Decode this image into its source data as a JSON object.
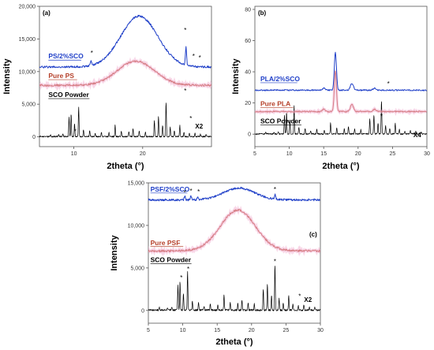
{
  "chart_data": [
    {
      "id": "a",
      "type": "line",
      "tag": "(a)",
      "xlabel": "2theta (°)",
      "ylabel": "Intensity",
      "xlim": [
        5,
        30
      ],
      "ylim": [
        -1500,
        20000
      ],
      "xticks": [
        10,
        20
      ],
      "xtick_labels": [
        "10",
        "20"
      ],
      "yticks": [
        0,
        5000,
        10000,
        15000,
        20000
      ],
      "ytick_labels": [
        "0",
        "5,000",
        "10,000",
        "15,000",
        "20,000"
      ],
      "multiplier": {
        "text": "X2",
        "x": 28.2,
        "y": 1300
      },
      "series": [
        {
          "key": "sco",
          "name": "SCO Powder",
          "color": "#000000",
          "base": 0,
          "shape": "sco",
          "scale": 1.0
        },
        {
          "key": "pure",
          "name": "Pure PS",
          "color": "#b5402a",
          "base": 7900,
          "shape": "amorphous",
          "peak": 19.0,
          "amp": 3700,
          "width": 3.8,
          "noise": 150
        },
        {
          "key": "comp",
          "name": "PS/2%SCO",
          "color": "#1f3fc8",
          "base": 10700,
          "shape": "amorphous",
          "peak": 19.5,
          "amp": 7800,
          "width": 3.8,
          "noise": 150,
          "spikes": [
            [
              26.3,
              2700
            ],
            [
              12.5,
              600
            ]
          ]
        }
      ],
      "labels": [
        {
          "series": "comp",
          "text": "PS/2%SCO",
          "x": 6.3,
          "y": 12000
        },
        {
          "series": "pure",
          "text": "Pure PS",
          "x": 6.3,
          "y": 9000
        },
        {
          "series": "sco",
          "text": "SCO Powder",
          "x": 6.3,
          "y": 6100
        }
      ],
      "stars": [
        [
          26.2,
          16000
        ],
        [
          12.6,
          12500
        ],
        [
          27.4,
          12000
        ],
        [
          28.3,
          11800
        ],
        [
          10.2,
          500
        ],
        [
          26.2,
          6700
        ],
        [
          27.0,
          2500
        ]
      ]
    },
    {
      "id": "b",
      "type": "line",
      "tag": "(b)",
      "xlabel": "2theta (°)",
      "ylabel": "Intensity",
      "xlim": [
        5,
        30
      ],
      "ylim": [
        -8,
        82
      ],
      "xticks": [
        5,
        10,
        15,
        20,
        25,
        30
      ],
      "xtick_labels": [
        "5",
        "10",
        "15",
        "20",
        "25",
        "30"
      ],
      "yticks": [
        0,
        20,
        40,
        60,
        80
      ],
      "ytick_labels": [
        "0",
        "20",
        "40",
        "60",
        "80"
      ],
      "multiplier": {
        "text": "X4",
        "x": 28.6,
        "y": -2
      },
      "series": [
        {
          "key": "sco",
          "name": "SCO Powder",
          "color": "#000000",
          "base": 0,
          "shape": "sco",
          "scale": 0.004
        },
        {
          "key": "pure",
          "name": "Pure PLA",
          "color": "#b5402a",
          "base": 14.5,
          "shape": "pla",
          "noise": 0.4,
          "pamp": 26,
          "bamp": 1.6
        },
        {
          "key": "comp",
          "name": "PLA/2%SCO",
          "color": "#1f3fc8",
          "base": 28.2,
          "shape": "pla",
          "noise": 0.4,
          "pamp": 24,
          "bamp": 1.4
        }
      ],
      "labels": [
        {
          "series": "comp",
          "text": "PLA/2%SCO",
          "x": 5.8,
          "y": 34
        },
        {
          "series": "pure",
          "text": "Pure PLA",
          "x": 5.8,
          "y": 18
        },
        {
          "series": "sco",
          "text": "SCO Powder",
          "x": 5.8,
          "y": 7
        }
      ],
      "stars": [
        [
          24.4,
          31
        ],
        [
          23.4,
          10
        ]
      ]
    },
    {
      "id": "c",
      "type": "line",
      "tag": "(c)",
      "xlabel": "2theta (°)",
      "ylabel": "Intensity",
      "xlim": [
        5,
        30
      ],
      "ylim": [
        -1500,
        15000
      ],
      "xticks": [
        5,
        10,
        15,
        20,
        25,
        30
      ],
      "xtick_labels": [
        "5",
        "10",
        "15",
        "20",
        "25",
        "30"
      ],
      "yticks": [
        0,
        5000,
        10000,
        15000
      ],
      "ytick_labels": [
        "0",
        "5,000",
        "10,000",
        "15,000"
      ],
      "multiplier": {
        "text": "X2",
        "x": 28.2,
        "y": 1000
      },
      "series": [
        {
          "key": "sco",
          "name": "SCO Powder",
          "color": "#000000",
          "base": 0,
          "shape": "sco",
          "scale": 1.0
        },
        {
          "key": "pure",
          "name": "Pure PSF",
          "color": "#b5402a",
          "base": 7000,
          "shape": "amorphous",
          "peak": 18.0,
          "amp": 4800,
          "width": 3.6,
          "noise": 120
        },
        {
          "key": "comp",
          "name": "PSF/2%SCO",
          "color": "#1f3fc8",
          "base": 13000,
          "shape": "amorphous",
          "peak": 18.2,
          "amp": 1400,
          "width": 3.2,
          "noise": 120,
          "spikes": [
            [
              10.3,
              400
            ],
            [
              11.2,
              450
            ],
            [
              12.2,
              300
            ],
            [
              23.4,
              500
            ]
          ]
        }
      ],
      "labels": [
        {
          "series": "comp",
          "text": "PSF/2%SCO",
          "x": 5.3,
          "y": 14000
        },
        {
          "series": "pure",
          "text": "Pure PSF",
          "x": 5.3,
          "y": 7700
        },
        {
          "series": "sco",
          "text": "SCO Powder",
          "x": 5.3,
          "y": 5700
        }
      ],
      "stars": [
        [
          10.3,
          13600
        ],
        [
          11.2,
          13800
        ],
        [
          12.3,
          13700
        ],
        [
          23.4,
          14000
        ],
        [
          9.8,
          3600
        ],
        [
          10.8,
          4600
        ],
        [
          23.4,
          5500
        ],
        [
          27.0,
          1400
        ]
      ]
    }
  ]
}
